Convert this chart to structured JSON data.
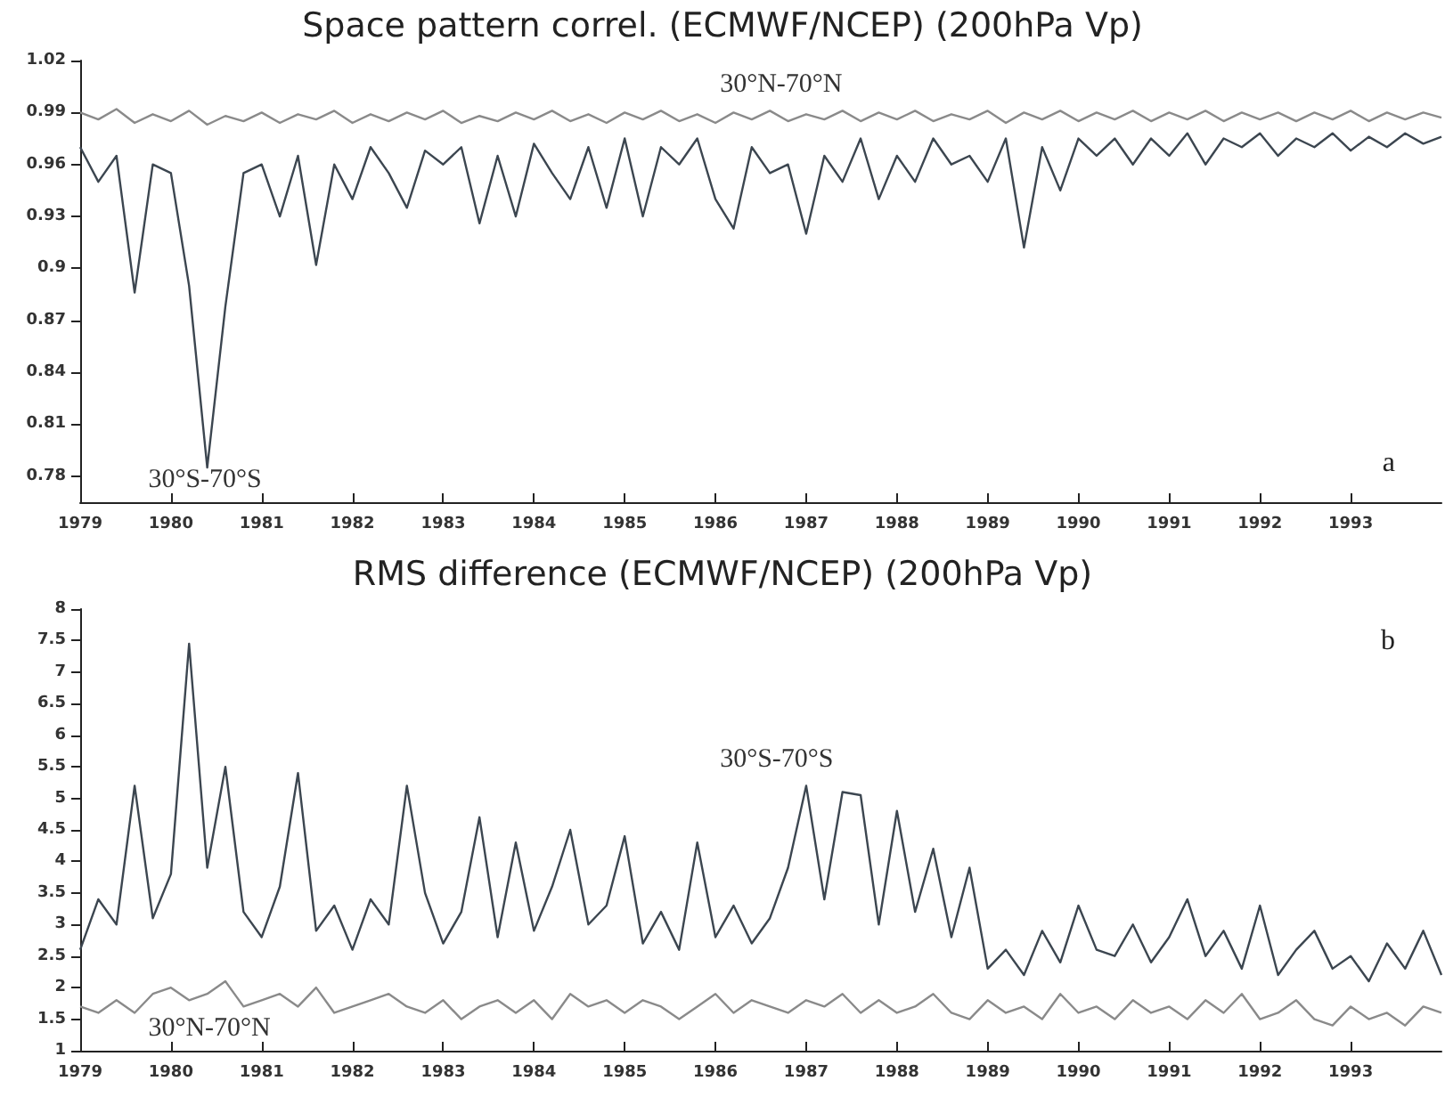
{
  "chart_data": [
    {
      "type": "line",
      "title": "Space pattern correl. (ECMWF/NCEP) (200hPa Vp)",
      "annotations": [
        "a"
      ],
      "x": [
        1979.0,
        1979.2,
        1979.4,
        1979.6,
        1979.8,
        1980.0,
        1980.2,
        1980.4,
        1980.6,
        1980.8,
        1981.0,
        1981.2,
        1981.4,
        1981.6,
        1981.8,
        1982.0,
        1982.2,
        1982.4,
        1982.6,
        1982.8,
        1983.0,
        1983.2,
        1983.4,
        1983.6,
        1983.8,
        1984.0,
        1984.2,
        1984.4,
        1984.6,
        1984.8,
        1985.0,
        1985.2,
        1985.4,
        1985.6,
        1985.8,
        1986.0,
        1986.2,
        1986.4,
        1986.6,
        1986.8,
        1987.0,
        1987.2,
        1987.4,
        1987.6,
        1987.8,
        1988.0,
        1988.2,
        1988.4,
        1988.6,
        1988.8,
        1989.0,
        1989.2,
        1989.4,
        1989.6,
        1989.8,
        1990.0,
        1990.2,
        1990.4,
        1990.6,
        1990.8,
        1991.0,
        1991.2,
        1991.4,
        1991.6,
        1991.8,
        1992.0,
        1992.2,
        1992.4,
        1992.6,
        1992.8,
        1993.0,
        1993.2,
        1993.4,
        1993.6,
        1993.8,
        1994.0
      ],
      "series": [
        {
          "name": "30°N-70°N",
          "color": "#8a8a8a",
          "values": [
            0.99,
            0.986,
            0.992,
            0.984,
            0.989,
            0.985,
            0.991,
            0.983,
            0.988,
            0.985,
            0.99,
            0.984,
            0.989,
            0.986,
            0.991,
            0.984,
            0.989,
            0.985,
            0.99,
            0.986,
            0.991,
            0.984,
            0.988,
            0.985,
            0.99,
            0.986,
            0.991,
            0.985,
            0.989,
            0.984,
            0.99,
            0.986,
            0.991,
            0.985,
            0.989,
            0.984,
            0.99,
            0.986,
            0.991,
            0.985,
            0.989,
            0.986,
            0.991,
            0.985,
            0.99,
            0.986,
            0.991,
            0.985,
            0.989,
            0.986,
            0.991,
            0.984,
            0.99,
            0.986,
            0.991,
            0.985,
            0.99,
            0.986,
            0.991,
            0.985,
            0.99,
            0.986,
            0.991,
            0.985,
            0.99,
            0.986,
            0.99,
            0.985,
            0.99,
            0.986,
            0.991,
            0.985,
            0.99,
            0.986,
            0.99,
            0.987
          ]
        },
        {
          "name": "30°S-70°S",
          "color": "#3c4650",
          "values": [
            0.97,
            0.95,
            0.965,
            0.886,
            0.96,
            0.955,
            0.89,
            0.785,
            0.878,
            0.955,
            0.96,
            0.93,
            0.965,
            0.902,
            0.96,
            0.94,
            0.97,
            0.955,
            0.935,
            0.968,
            0.96,
            0.97,
            0.926,
            0.965,
            0.93,
            0.972,
            0.955,
            0.94,
            0.97,
            0.935,
            0.975,
            0.93,
            0.97,
            0.96,
            0.975,
            0.94,
            0.923,
            0.97,
            0.955,
            0.96,
            0.92,
            0.965,
            0.95,
            0.975,
            0.94,
            0.965,
            0.95,
            0.975,
            0.96,
            0.965,
            0.95,
            0.975,
            0.912,
            0.97,
            0.945,
            0.975,
            0.965,
            0.975,
            0.96,
            0.975,
            0.965,
            0.978,
            0.96,
            0.975,
            0.97,
            0.978,
            0.965,
            0.975,
            0.97,
            0.978,
            0.968,
            0.976,
            0.97,
            0.978,
            0.972,
            0.976
          ]
        }
      ],
      "xlim": [
        1979,
        1994
      ],
      "xticks": [
        1979,
        1980,
        1981,
        1982,
        1983,
        1984,
        1985,
        1986,
        1987,
        1988,
        1989,
        1990,
        1991,
        1992,
        1993
      ],
      "ylim": [
        0.765,
        1.02
      ],
      "yticks": [
        0.78,
        0.81,
        0.84,
        0.87,
        0.9,
        0.93,
        0.96,
        0.99,
        1.02
      ],
      "grid": false,
      "legend": false,
      "marker": "none",
      "line_style": "solid"
    },
    {
      "type": "line",
      "title": "RMS difference (ECMWF/NCEP) (200hPa Vp)",
      "annotations": [
        "b"
      ],
      "x": [
        1979.0,
        1979.2,
        1979.4,
        1979.6,
        1979.8,
        1980.0,
        1980.2,
        1980.4,
        1980.6,
        1980.8,
        1981.0,
        1981.2,
        1981.4,
        1981.6,
        1981.8,
        1982.0,
        1982.2,
        1982.4,
        1982.6,
        1982.8,
        1983.0,
        1983.2,
        1983.4,
        1983.6,
        1983.8,
        1984.0,
        1984.2,
        1984.4,
        1984.6,
        1984.8,
        1985.0,
        1985.2,
        1985.4,
        1985.6,
        1985.8,
        1986.0,
        1986.2,
        1986.4,
        1986.6,
        1986.8,
        1987.0,
        1987.2,
        1987.4,
        1987.6,
        1987.8,
        1988.0,
        1988.2,
        1988.4,
        1988.6,
        1988.8,
        1989.0,
        1989.2,
        1989.4,
        1989.6,
        1989.8,
        1990.0,
        1990.2,
        1990.4,
        1990.6,
        1990.8,
        1991.0,
        1991.2,
        1991.4,
        1991.6,
        1991.8,
        1992.0,
        1992.2,
        1992.4,
        1992.6,
        1992.8,
        1993.0,
        1993.2,
        1993.4,
        1993.6,
        1993.8,
        1994.0
      ],
      "series": [
        {
          "name": "30°S-70°S",
          "color": "#3c4650",
          "values": [
            2.6,
            3.4,
            3.0,
            5.2,
            3.1,
            3.8,
            7.45,
            3.9,
            5.5,
            3.2,
            2.8,
            3.6,
            5.4,
            2.9,
            3.3,
            2.6,
            3.4,
            3.0,
            5.2,
            3.5,
            2.7,
            3.2,
            4.7,
            2.8,
            4.3,
            2.9,
            3.6,
            4.5,
            3.0,
            3.3,
            4.4,
            2.7,
            3.2,
            2.6,
            4.3,
            2.8,
            3.3,
            2.7,
            3.1,
            3.9,
            5.2,
            3.4,
            5.1,
            5.05,
            3.0,
            4.8,
            3.2,
            4.2,
            2.8,
            3.9,
            2.3,
            2.6,
            2.2,
            2.9,
            2.4,
            3.3,
            2.6,
            2.5,
            3.0,
            2.4,
            2.8,
            3.4,
            2.5,
            2.9,
            2.3,
            3.3,
            2.2,
            2.6,
            2.9,
            2.3,
            2.5,
            2.1,
            2.7,
            2.3,
            2.9,
            2.2
          ]
        },
        {
          "name": "30°N-70°N",
          "color": "#8a8a8a",
          "values": [
            1.7,
            1.6,
            1.8,
            1.6,
            1.9,
            2.0,
            1.8,
            1.9,
            2.1,
            1.7,
            1.8,
            1.9,
            1.7,
            2.0,
            1.6,
            1.7,
            1.8,
            1.9,
            1.7,
            1.6,
            1.8,
            1.5,
            1.7,
            1.8,
            1.6,
            1.8,
            1.5,
            1.9,
            1.7,
            1.8,
            1.6,
            1.8,
            1.7,
            1.5,
            1.7,
            1.9,
            1.6,
            1.8,
            1.7,
            1.6,
            1.8,
            1.7,
            1.9,
            1.6,
            1.8,
            1.6,
            1.7,
            1.9,
            1.6,
            1.5,
            1.8,
            1.6,
            1.7,
            1.5,
            1.9,
            1.6,
            1.7,
            1.5,
            1.8,
            1.6,
            1.7,
            1.5,
            1.8,
            1.6,
            1.9,
            1.5,
            1.6,
            1.8,
            1.5,
            1.4,
            1.7,
            1.5,
            1.6,
            1.4,
            1.7,
            1.6
          ]
        }
      ],
      "xlim": [
        1979,
        1994
      ],
      "xticks": [
        1979,
        1980,
        1981,
        1982,
        1983,
        1984,
        1985,
        1986,
        1987,
        1988,
        1989,
        1990,
        1991,
        1992,
        1993
      ],
      "ylim": [
        1,
        8
      ],
      "yticks": [
        1,
        1.5,
        2,
        2.5,
        3,
        3.5,
        4,
        4.5,
        5,
        5.5,
        6,
        6.5,
        7,
        7.5,
        8
      ],
      "grid": false,
      "legend": false,
      "marker": "none",
      "line_style": "solid"
    }
  ]
}
